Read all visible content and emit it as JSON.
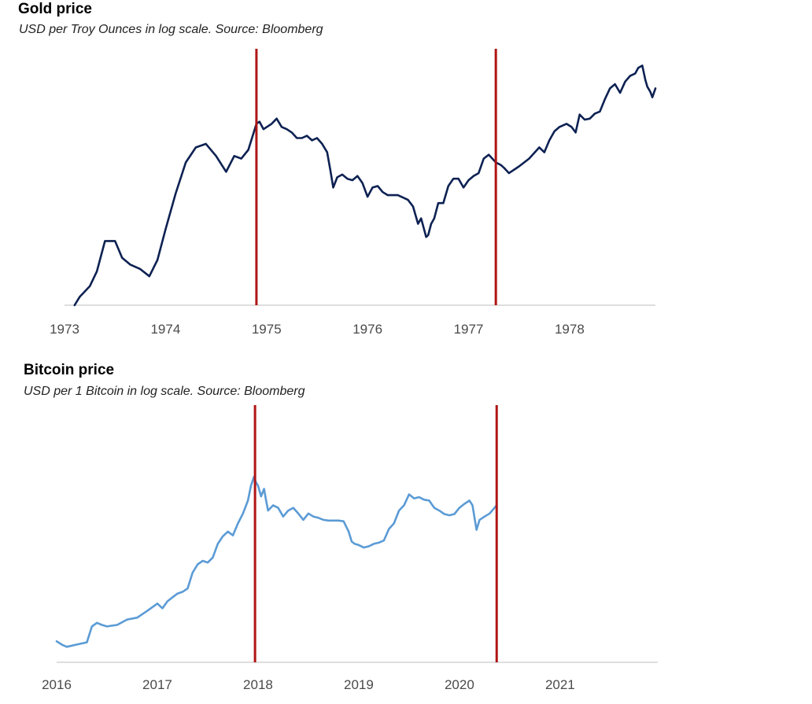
{
  "chart_data": [
    {
      "type": "line",
      "title": "Gold price",
      "subtitle": "USD per Troy Ounces in log scale. Source: Bloomberg",
      "xlabel": "",
      "ylabel": "",
      "y_scale": "log",
      "grid": false,
      "x_ticks": [
        "1973",
        "1974",
        "1975",
        "1976",
        "1977",
        "1978"
      ],
      "xlim": [
        1973.0,
        1978.85
      ],
      "ylim": [
        64,
        250
      ],
      "series_color": "#0d2152",
      "marker_color": "#b01414",
      "vertical_markers": [
        1974.9,
        1977.27
      ],
      "series": [
        {
          "x": [
            1973.1,
            1973.15,
            1973.25,
            1973.32,
            1973.4,
            1973.5,
            1973.57,
            1973.65,
            1973.75,
            1973.84,
            1973.92,
            1974.0,
            1974.1,
            1974.2,
            1974.3,
            1974.4,
            1974.5,
            1974.6,
            1974.68,
            1974.75,
            1974.82,
            1974.9,
            1974.93,
            1974.97,
            1975.05,
            1975.1,
            1975.15,
            1975.2,
            1975.25,
            1975.3,
            1975.35,
            1975.4,
            1975.45,
            1975.5,
            1975.55,
            1975.6,
            1975.63,
            1975.66,
            1975.7,
            1975.75,
            1975.8,
            1975.85,
            1975.9,
            1975.95,
            1976.0,
            1976.05,
            1976.1,
            1976.15,
            1976.2,
            1976.3,
            1976.4,
            1976.45,
            1976.5,
            1976.53,
            1976.55,
            1976.58,
            1976.6,
            1976.63,
            1976.66,
            1976.7,
            1976.75,
            1976.8,
            1976.85,
            1976.9,
            1976.95,
            1977.0,
            1977.05,
            1977.1,
            1977.15,
            1977.2,
            1977.27,
            1977.32,
            1977.35,
            1977.4,
            1977.5,
            1977.6,
            1977.7,
            1977.75,
            1977.8,
            1977.85,
            1977.9,
            1977.97,
            1978.02,
            1978.06,
            1978.1,
            1978.15,
            1978.2,
            1978.25,
            1978.3,
            1978.35,
            1978.4,
            1978.45,
            1978.5,
            1978.55,
            1978.6,
            1978.65,
            1978.68,
            1978.72,
            1978.75,
            1978.77,
            1978.8,
            1978.82,
            1978.85
          ],
          "values": [
            64,
            67,
            71,
            77,
            91,
            91,
            83,
            80,
            78,
            75,
            82,
            97,
            118,
            140,
            152,
            155,
            145,
            133,
            145,
            143,
            150,
            173,
            175,
            168,
            173,
            178,
            170,
            168,
            165,
            160,
            160,
            162,
            158,
            160,
            155,
            148,
            135,
            122,
            129,
            131,
            128,
            127,
            130,
            125,
            116,
            122,
            123,
            119,
            117,
            117,
            114,
            110,
            100,
            103,
            99,
            93,
            94,
            100,
            103,
            112,
            112,
            123,
            128,
            128,
            122,
            127,
            130,
            132,
            143,
            146,
            140,
            138,
            136,
            132,
            137,
            143,
            152,
            148,
            158,
            166,
            170,
            173,
            170,
            165,
            182,
            177,
            178,
            183,
            185,
            198,
            210,
            215,
            205,
            218,
            225,
            228,
            235,
            238,
            220,
            212,
            206,
            200,
            210
          ]
        }
      ]
    },
    {
      "type": "line",
      "title": "Bitcoin price",
      "subtitle": "USD per 1 Bitcoin in log scale. Source: Bloomberg",
      "xlabel": "",
      "ylabel": "",
      "y_scale": "log",
      "grid": false,
      "x_ticks": [
        "2016",
        "2017",
        "2018",
        "2019",
        "2020",
        "2021"
      ],
      "xlim": [
        2016.0,
        2021.97
      ],
      "ylim": [
        350,
        20000
      ],
      "series_color": "#5b9bd5",
      "marker_color": "#b01414",
      "vertical_markers": [
        2017.97,
        2020.37
      ],
      "series": [
        {
          "x": [
            2016.0,
            2016.05,
            2016.1,
            2016.2,
            2016.3,
            2016.35,
            2016.4,
            2016.45,
            2016.5,
            2016.55,
            2016.6,
            2016.7,
            2016.8,
            2016.9,
            2017.0,
            2017.05,
            2017.1,
            2017.15,
            2017.2,
            2017.25,
            2017.3,
            2017.35,
            2017.4,
            2017.45,
            2017.5,
            2017.55,
            2017.6,
            2017.65,
            2017.7,
            2017.75,
            2017.8,
            2017.85,
            2017.9,
            2017.93,
            2017.96,
            2017.98,
            2018.0,
            2018.03,
            2018.06,
            2018.08,
            2018.1,
            2018.15,
            2018.2,
            2018.25,
            2018.3,
            2018.35,
            2018.4,
            2018.45,
            2018.5,
            2018.55,
            2018.6,
            2018.65,
            2018.7,
            2018.75,
            2018.8,
            2018.85,
            2018.9,
            2018.93,
            2018.96,
            2019.0,
            2019.05,
            2019.1,
            2019.15,
            2019.2,
            2019.25,
            2019.3,
            2019.35,
            2019.4,
            2019.45,
            2019.5,
            2019.55,
            2019.6,
            2019.65,
            2019.7,
            2019.75,
            2019.8,
            2019.85,
            2019.9,
            2019.95,
            2020.0,
            2020.05,
            2020.1,
            2020.13,
            2020.17,
            2020.2,
            2020.25,
            2020.3,
            2020.37
          ],
          "values": [
            430,
            400,
            380,
            400,
            420,
            600,
            650,
            620,
            600,
            610,
            620,
            700,
            730,
            850,
            1000,
            900,
            1050,
            1150,
            1250,
            1300,
            1400,
            2000,
            2400,
            2600,
            2500,
            2800,
            3800,
            4500,
            5000,
            4600,
            6000,
            7500,
            10000,
            14000,
            17000,
            15000,
            14000,
            11000,
            13000,
            10000,
            8000,
            9000,
            8500,
            7000,
            8000,
            8500,
            7500,
            6500,
            7500,
            7000,
            6800,
            6500,
            6400,
            6400,
            6400,
            6300,
            5000,
            4000,
            3800,
            3700,
            3500,
            3600,
            3800,
            3900,
            4100,
            5300,
            6000,
            8000,
            9000,
            11500,
            10500,
            10800,
            10200,
            10000,
            8500,
            8000,
            7400,
            7200,
            7400,
            8500,
            9300,
            10000,
            9000,
            5200,
            6500,
            7000,
            7500,
            9000
          ]
        }
      ]
    }
  ]
}
